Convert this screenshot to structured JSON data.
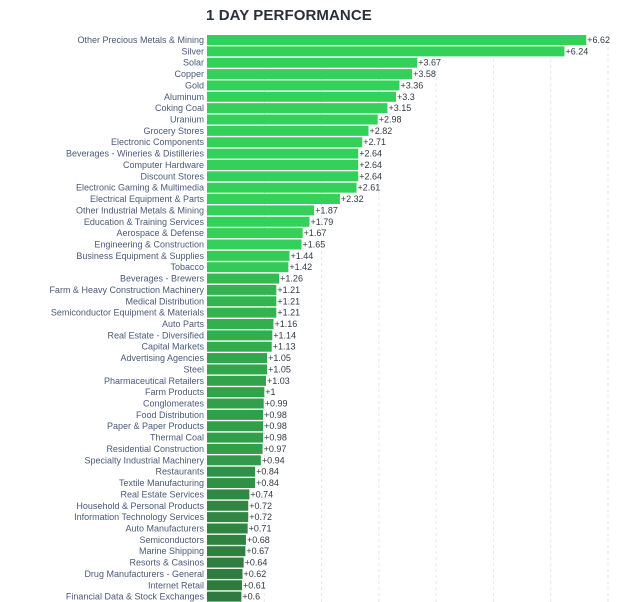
{
  "chart_data": {
    "type": "bar",
    "orientation": "horizontal",
    "title": "1 DAY PERFORMANCE",
    "value_prefix": "+",
    "xlim": [
      0,
      7
    ],
    "grid": true,
    "categories": [
      "Other Precious Metals & Mining",
      "Silver",
      "Solar",
      "Copper",
      "Gold",
      "Aluminum",
      "Coking Coal",
      "Uranium",
      "Grocery Stores",
      "Electronic Components",
      "Beverages - Wineries & Distilleries",
      "Computer Hardware",
      "Discount Stores",
      "Electronic Gaming & Multimedia",
      "Electrical Equipment & Parts",
      "Other Industrial Metals & Mining",
      "Education & Training Services",
      "Aerospace & Defense",
      "Engineering & Construction",
      "Business Equipment & Supplies",
      "Tobacco",
      "Beverages - Brewers",
      "Farm & Heavy Construction Machinery",
      "Medical Distribution",
      "Semiconductor Equipment & Materials",
      "Auto Parts",
      "Real Estate - Diversified",
      "Capital Markets",
      "Advertising Agencies",
      "Steel",
      "Pharmaceutical Retailers",
      "Farm Products",
      "Conglomerates",
      "Food Distribution",
      "Paper & Paper Products",
      "Thermal Coal",
      "Residential Construction",
      "Specialty Industrial Machinery",
      "Restaurants",
      "Textile Manufacturing",
      "Real Estate Services",
      "Household & Personal Products",
      "Information Technology Services",
      "Auto Manufacturers",
      "Semiconductors",
      "Marine Shipping",
      "Resorts & Casinos",
      "Drug Manufacturers - General",
      "Internet Retail",
      "Financial Data & Stock Exchanges"
    ],
    "values": [
      6.62,
      6.24,
      3.67,
      3.58,
      3.36,
      3.3,
      3.15,
      2.98,
      2.82,
      2.71,
      2.64,
      2.64,
      2.64,
      2.61,
      2.32,
      1.87,
      1.79,
      1.67,
      1.65,
      1.44,
      1.42,
      1.26,
      1.21,
      1.21,
      1.21,
      1.16,
      1.14,
      1.13,
      1.05,
      1.05,
      1.03,
      1,
      0.99,
      0.98,
      0.98,
      0.98,
      0.97,
      0.94,
      0.84,
      0.84,
      0.74,
      0.72,
      0.72,
      0.71,
      0.68,
      0.67,
      0.64,
      0.62,
      0.61,
      0.6
    ],
    "colors": {
      "bar_high": "#34d15a",
      "bar_low": "#2f7a3e"
    }
  }
}
